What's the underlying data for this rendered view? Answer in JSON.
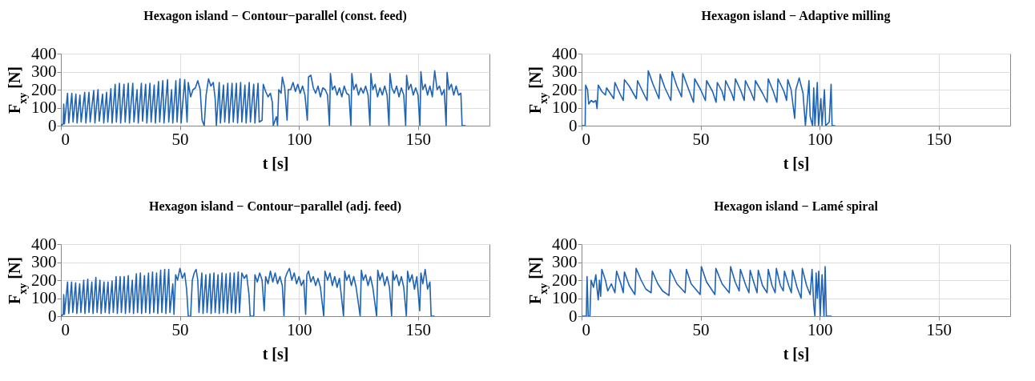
{
  "chart_data": [
    {
      "type": "line",
      "title": "Hexagon island − Contour−parallel (const. feed)",
      "xlabel": "t [s]",
      "ylabel": "F$_{xy}$ [N]",
      "xlim": [
        0,
        180
      ],
      "ylim": [
        0,
        400
      ],
      "xticks": [
        0,
        50,
        100,
        150
      ],
      "yticks": [
        0,
        100,
        200,
        300,
        400
      ],
      "grid": true,
      "series": [
        {
          "color": "#1f63b5",
          "x": [
            0,
            1.0,
            1.2,
            1.5,
            2.8,
            3.3,
            4.6,
            5.1,
            6.3,
            6.8,
            8.0,
            8.5,
            10.0,
            10.5,
            11.8,
            12.3,
            13.8,
            14.3,
            15.6,
            16.1,
            17.5,
            18.0,
            19.2,
            19.7,
            21.0,
            21.5,
            22.8,
            23.3,
            24.6,
            25.1,
            26.5,
            27.0,
            28.3,
            28.8,
            30.2,
            30.7,
            32.0,
            32.5,
            33.8,
            34.3,
            35.6,
            36.1,
            37.4,
            37.9,
            39.2,
            39.7,
            41.0,
            41.5,
            42.8,
            43.3,
            44.8,
            45.3,
            46.5,
            47.0,
            48.3,
            48.8,
            50.0,
            50.5,
            52.0,
            53.0,
            53.5,
            54.5,
            55.5,
            56.5,
            57.5,
            58.5,
            59.3,
            60.2,
            61.0,
            62.0,
            63.0,
            64.0,
            64.8,
            65.3,
            66.5,
            67.0,
            68.3,
            68.8,
            70.1,
            70.6,
            71.9,
            72.4,
            73.7,
            74.2,
            75.5,
            76.0,
            77.3,
            77.8,
            79.1,
            79.6,
            81.0,
            81.5,
            82.8,
            83.3,
            84.5,
            85.0,
            86.0,
            87.0,
            88.0,
            88.8,
            89.2,
            90.5,
            91.0,
            91.5,
            92.5,
            93.0,
            94.0,
            95.0,
            95.5,
            96.5,
            97.5,
            98.5,
            99.5,
            100.5,
            101.5,
            102.5,
            103.5,
            104.0,
            105.0,
            106.0,
            107.0,
            108.0,
            109.0,
            110.0,
            111.0,
            112.0,
            112.8,
            113.2,
            114,
            115,
            116,
            117,
            118,
            119,
            120,
            121,
            121.8,
            122.2,
            123,
            124,
            125,
            126,
            127,
            128,
            129,
            129.8,
            130.2,
            131,
            132,
            133,
            134,
            135,
            136,
            137,
            137.8,
            138.2,
            139,
            140,
            141,
            142,
            143,
            144,
            144.8,
            145.2,
            146,
            147,
            148,
            149,
            150,
            150.8,
            151.2,
            152,
            153,
            154,
            155,
            156,
            157,
            158,
            159,
            160,
            161,
            161.8,
            162.2,
            163,
            164,
            165,
            166,
            167,
            168,
            168.5,
            170
          ],
          "values": [
            0,
            10,
            120,
            10,
            180,
            15,
            180,
            20,
            175,
            15,
            170,
            20,
            185,
            15,
            185,
            20,
            195,
            15,
            200,
            25,
            175,
            15,
            185,
            20,
            205,
            15,
            230,
            20,
            235,
            15,
            230,
            20,
            235,
            15,
            235,
            20,
            200,
            15,
            235,
            25,
            230,
            15,
            235,
            20,
            225,
            15,
            245,
            20,
            250,
            15,
            255,
            20,
            200,
            15,
            250,
            20,
            260,
            15,
            255,
            20,
            240,
            160,
            200,
            210,
            250,
            200,
            30,
            0,
            170,
            260,
            220,
            240,
            150,
            0,
            240,
            15,
            225,
            20,
            235,
            15,
            235,
            20,
            235,
            15,
            240,
            20,
            225,
            15,
            240,
            20,
            230,
            15,
            235,
            20,
            30,
            230,
            190,
            160,
            180,
            130,
            0,
            50,
            0,
            200,
            180,
            270,
            210,
            30,
            200,
            200,
            240,
            190,
            230,
            180,
            220,
            170,
            30,
            270,
            280,
            210,
            180,
            220,
            160,
            210,
            200,
            170,
            0,
            290,
            200,
            220,
            170,
            210,
            160,
            220,
            180,
            170,
            0,
            290,
            200,
            230,
            170,
            210,
            180,
            220,
            170,
            0,
            290,
            200,
            230,
            160,
            210,
            170,
            220,
            170,
            0,
            290,
            210,
            180,
            220,
            160,
            210,
            170,
            0,
            280,
            200,
            230,
            170,
            210,
            170,
            0,
            300,
            200,
            230,
            170,
            220,
            160,
            305,
            200,
            220,
            170,
            200,
            0,
            295,
            200,
            230,
            170,
            220,
            170,
            180,
            0,
            0
          ]
        }
      ]
    },
    {
      "type": "line",
      "title": "Hexagon island − Adaptive milling",
      "xlabel": "t [s]",
      "ylabel": "F$_{xy}$ [N]",
      "xlim": [
        0,
        180
      ],
      "ylim": [
        0,
        400
      ],
      "xticks": [
        0,
        50,
        100,
        150
      ],
      "yticks": [
        0,
        100,
        200,
        300,
        400
      ],
      "grid": true,
      "series": [
        {
          "color": "#1f63b5",
          "x": [
            0,
            1.5,
            1.7,
            2.5,
            3.0,
            4.0,
            5.0,
            6.0,
            6.5,
            7.0,
            8.5,
            10.0,
            10.5,
            12.0,
            13.5,
            14.0,
            16.0,
            17.5,
            18.0,
            20.0,
            23.0,
            23.5,
            26.0,
            27.5,
            28.0,
            30.0,
            32.5,
            33.0,
            35.0,
            37.5,
            38.0,
            40.0,
            42.0,
            42.5,
            45.0,
            47.0,
            47.5,
            50.0,
            52.0,
            52.5,
            55.0,
            56.5,
            57.0,
            59.0,
            60.0,
            60.5,
            63.0,
            64.0,
            64.6,
            67.0,
            68.3,
            68.8,
            71.0,
            72.5,
            73.0,
            76.0,
            77.9,
            78.4,
            80.5,
            82.0,
            82.5,
            85.0,
            86.1,
            86.6,
            88.0,
            89.5,
            90.0,
            91.4,
            93.0,
            94.0,
            95.5,
            96.0,
            97.0,
            97.5,
            98.0,
            99.0,
            99.5,
            100.5,
            101.0,
            102.0,
            102.5,
            104.0,
            104.8,
            105.2,
            106.5
          ],
          "values": [
            0,
            0,
            225,
            200,
            120,
            140,
            130,
            140,
            95,
            225,
            190,
            170,
            210,
            180,
            150,
            240,
            180,
            140,
            255,
            220,
            150,
            250,
            180,
            140,
            305,
            230,
            150,
            285,
            210,
            140,
            300,
            220,
            160,
            290,
            200,
            130,
            260,
            200,
            140,
            250,
            190,
            130,
            240,
            190,
            140,
            250,
            180,
            140,
            260,
            190,
            140,
            250,
            190,
            140,
            250,
            180,
            130,
            260,
            190,
            130,
            260,
            190,
            140,
            255,
            200,
            40,
            200,
            265,
            180,
            0,
            250,
            50,
            0,
            210,
            0,
            240,
            0,
            150,
            0,
            200,
            0,
            20,
            230,
            0,
            0
          ]
        }
      ]
    },
    {
      "type": "line",
      "title": "Hexagon island − Contour−parallel (adj. feed)",
      "xlabel": "t [s]",
      "ylabel": "F$_{xy}$ [N]",
      "xlim": [
        0,
        180
      ],
      "ylim": [
        0,
        400
      ],
      "xticks": [
        0,
        50,
        100,
        150
      ],
      "yticks": [
        0,
        100,
        200,
        300,
        400
      ],
      "grid": true,
      "series": [
        {
          "color": "#1f63b5",
          "x": [
            0,
            1.0,
            1.2,
            1.5,
            2.8,
            3.3,
            4.5,
            5.0,
            6.2,
            6.7,
            7.9,
            8.4,
            9.6,
            10.1,
            11.3,
            11.8,
            13.0,
            13.5,
            14.7,
            15.2,
            16.4,
            16.9,
            18.1,
            18.6,
            19.8,
            20.3,
            21.5,
            22.0,
            23.2,
            23.7,
            24.9,
            25.4,
            26.6,
            27.1,
            28.3,
            28.8,
            30.0,
            30.5,
            31.7,
            32.2,
            33.4,
            33.9,
            35.1,
            35.6,
            36.8,
            37.3,
            38.5,
            39.0,
            40.2,
            40.7,
            41.9,
            42.4,
            43.6,
            44.1,
            45.3,
            45.8,
            47.0,
            47.5,
            48.2,
            49.0,
            50.0,
            51.0,
            52.0,
            52.8,
            53.5,
            54.5,
            55.2,
            56.0,
            56.8,
            57.5,
            58.0,
            59.2,
            59.7,
            60.9,
            61.4,
            62.6,
            63.1,
            64.3,
            64.8,
            66.0,
            66.5,
            67.7,
            68.2,
            69.4,
            69.9,
            71.1,
            71.6,
            72.8,
            73.3,
            74.5,
            75.0,
            76.0,
            77.0,
            78.0,
            79.0,
            79.5,
            81.0,
            81.5,
            82.5,
            83.5,
            84.5,
            85.4,
            86.0,
            87.0,
            88.0,
            89.0,
            90.0,
            91.0,
            92.0,
            93.0,
            93.7,
            94.2,
            95.0,
            96.0,
            97.0,
            98.0,
            99.0,
            100.0,
            101.0,
            102.0,
            102.8,
            103.3,
            104.0,
            105.0,
            106.0,
            107.0,
            108.0,
            109.0,
            110.4,
            110.9,
            112.0,
            113.0,
            114.0,
            115.0,
            116.0,
            117.0,
            118.7,
            119.2,
            120.0,
            121.0,
            122.0,
            123.0,
            124.0,
            125.7,
            126.2,
            127.0,
            128.0,
            129.0,
            130.0,
            131.0,
            132.6,
            133.1,
            134.0,
            135.0,
            136.0,
            137.0,
            138.0,
            138.9,
            139.4,
            140.0,
            141.0,
            142.0,
            143.0,
            144.0,
            145.1,
            145.6,
            146.5,
            147.5,
            148.5,
            149.5,
            150.7,
            151.2,
            152.0,
            153.0,
            154.0,
            155.0,
            155.5,
            157.0
          ],
          "values": [
            0,
            10,
            120,
            10,
            190,
            15,
            190,
            20,
            185,
            15,
            180,
            20,
            200,
            15,
            205,
            20,
            190,
            15,
            215,
            20,
            200,
            15,
            190,
            20,
            190,
            15,
            195,
            20,
            220,
            15,
            220,
            20,
            220,
            15,
            225,
            20,
            200,
            15,
            235,
            20,
            240,
            15,
            225,
            20,
            240,
            15,
            245,
            20,
            240,
            15,
            255,
            20,
            260,
            15,
            260,
            20,
            180,
            10,
            230,
            200,
            265,
            210,
            240,
            150,
            0,
            0,
            200,
            240,
            260,
            200,
            20,
            240,
            15,
            230,
            20,
            235,
            15,
            240,
            20,
            230,
            15,
            240,
            20,
            235,
            15,
            240,
            20,
            240,
            15,
            245,
            20,
            240,
            210,
            230,
            120,
            0,
            0,
            230,
            190,
            240,
            200,
            30,
            220,
            180,
            250,
            190,
            240,
            180,
            220,
            170,
            0,
            210,
            240,
            265,
            200,
            240,
            180,
            220,
            170,
            200,
            10,
            230,
            250,
            190,
            220,
            170,
            210,
            160,
            0,
            250,
            200,
            240,
            170,
            220,
            160,
            210,
            0,
            250,
            200,
            230,
            170,
            220,
            160,
            0,
            255,
            200,
            230,
            170,
            220,
            160,
            0,
            255,
            200,
            240,
            170,
            220,
            160,
            0,
            250,
            200,
            230,
            170,
            220,
            160,
            0,
            250,
            190,
            230,
            150,
            220,
            30,
            240,
            180,
            260,
            150,
            190,
            0,
            0
          ]
        }
      ]
    },
    {
      "type": "line",
      "title": "Hexagon island − Lamé spiral",
      "xlabel": "t [s]",
      "ylabel": "F$_{xy}$ [N]",
      "xlim": [
        0,
        180
      ],
      "ylim": [
        0,
        400
      ],
      "xticks": [
        0,
        50,
        100,
        150
      ],
      "yticks": [
        0,
        100,
        200,
        300,
        400
      ],
      "grid": true,
      "series": [
        {
          "color": "#1f63b5",
          "x": [
            0,
            2.0,
            2.3,
            2.8,
            3.5,
            4.0,
            5.0,
            6.0,
            6.5,
            7.0,
            7.5,
            8.0,
            8.5,
            10.0,
            11.0,
            12.5,
            14.0,
            14.7,
            16.5,
            17.5,
            18.0,
            20.0,
            22.4,
            22.9,
            25.0,
            27.0,
            29.2,
            29.7,
            32.0,
            34.0,
            36.7,
            37.2,
            40.0,
            43.5,
            44.0,
            46.0,
            49.8,
            50.3,
            52.5,
            55.0,
            56.0,
            56.4,
            59.0,
            62.0,
            62.6,
            64.5,
            66.2,
            66.7,
            69.0,
            70.3,
            70.8,
            72.5,
            73.7,
            74.2,
            76.0,
            77.9,
            78.4,
            80.0,
            81.3,
            81.8,
            83.5,
            84.7,
            85.2,
            87.0,
            88.1,
            88.6,
            90.5,
            92.2,
            92.7,
            94.5,
            96.0,
            96.8,
            97.5,
            98.0,
            98.5,
            99.0,
            99.6,
            100.2,
            101.0,
            101.8,
            102.3,
            102.8,
            105.0
          ],
          "values": [
            0,
            0,
            220,
            0,
            0,
            200,
            160,
            230,
            150,
            90,
            200,
            110,
            260,
            200,
            140,
            180,
            130,
            250,
            180,
            130,
            245,
            170,
            120,
            265,
            200,
            150,
            130,
            250,
            180,
            140,
            115,
            260,
            180,
            130,
            260,
            180,
            120,
            275,
            190,
            140,
            120,
            265,
            180,
            130,
            275,
            190,
            140,
            260,
            170,
            130,
            255,
            180,
            130,
            255,
            170,
            130,
            260,
            170,
            130,
            265,
            170,
            140,
            250,
            170,
            130,
            255,
            160,
            100,
            265,
            170,
            120,
            260,
            60,
            0,
            240,
            100,
            250,
            0,
            230,
            0,
            275,
            0,
            0
          ]
        }
      ]
    }
  ]
}
